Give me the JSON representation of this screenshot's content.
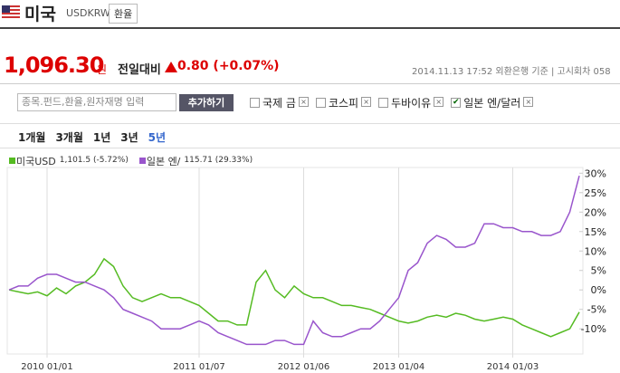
{
  "header": {
    "country": "미국",
    "code": "USDKRW",
    "button": "환율"
  },
  "quote": {
    "price": "1,096.30",
    "unit": "원",
    "change_label": "전일대비",
    "change": "0.80 (+0.07%)",
    "info": "2014.11.13 17:52  외환은행 기준  |  고시회차 058"
  },
  "search": {
    "placeholder": "종목.펀드,환율,원자재명 입력",
    "button": "추가하기",
    "compare": [
      {
        "label": "국제 금",
        "checked": false
      },
      {
        "label": "코스피",
        "checked": false
      },
      {
        "label": "두바이유",
        "checked": false
      },
      {
        "label": "일본 엔/달러",
        "checked": true
      }
    ]
  },
  "periods": {
    "items": [
      "1개월",
      "3개월",
      "1년",
      "3년",
      "5년"
    ],
    "active": 4
  },
  "chart_data": {
    "type": "line",
    "categories": [
      null,
      null,
      null,
      null,
      "2010 01/01",
      null,
      null,
      null,
      null,
      null,
      null,
      null,
      null,
      null,
      null,
      null,
      null,
      null,
      null,
      null,
      "2011 01/07",
      null,
      null,
      null,
      null,
      null,
      null,
      null,
      null,
      null,
      null,
      "2012 01/06",
      null,
      null,
      null,
      null,
      null,
      null,
      null,
      null,
      null,
      "2013 01/04",
      null,
      null,
      null,
      null,
      null,
      null,
      null,
      null,
      null,
      null,
      null,
      "2014 01/03",
      null,
      null,
      null,
      null,
      null,
      null,
      null
    ],
    "series": [
      {
        "name": "미국USD",
        "note": "1,101.5 (-5.72%)",
        "color": "#55bb22",
        "values": [
          0,
          -0.5,
          -1,
          -0.5,
          -1.5,
          0.5,
          -1,
          1,
          2,
          4,
          8,
          6,
          1,
          -2,
          -3,
          -2,
          -1,
          -2,
          -2,
          -3,
          -4,
          -6,
          -8,
          -8,
          -9,
          -9,
          2,
          5,
          0,
          -2,
          1,
          -1,
          -2,
          -2,
          -3,
          -4,
          -4,
          -4.5,
          -5,
          -6,
          -7,
          -8,
          -8.5,
          -8,
          -7,
          -6.5,
          -7,
          -6,
          -6.5,
          -7.5,
          -8,
          -7.5,
          -7,
          -7.5,
          -9,
          -10,
          -11,
          -12,
          -11,
          -10,
          -5.72
        ]
      },
      {
        "name": "일본 엔/",
        "note": "115.71 (29.33%)",
        "color": "#9955cc",
        "values": [
          0,
          1,
          1,
          3,
          4,
          4,
          3,
          2,
          2,
          1,
          0,
          -2,
          -5,
          -6,
          -7,
          -8,
          -10,
          -10,
          -10,
          -9,
          -8,
          -9,
          -11,
          -12,
          -13,
          -14,
          -14,
          -14,
          -13,
          -13,
          -14,
          -14,
          -8,
          -11,
          -12,
          -12,
          -11,
          -10,
          -10,
          -8,
          -5,
          -2,
          5,
          7,
          12,
          14,
          13,
          11,
          11,
          12,
          17,
          17,
          16,
          16,
          15,
          15,
          14,
          14,
          15,
          20,
          29.33
        ]
      }
    ],
    "ylim": [
      -16,
      31
    ],
    "yticks": [
      {
        "value": 30,
        "label": "30%"
      },
      {
        "value": 25,
        "label": "25%"
      },
      {
        "value": 20,
        "label": "20%"
      },
      {
        "value": 15,
        "label": "15%"
      },
      {
        "value": 10,
        "label": "10%"
      },
      {
        "value": 5,
        "label": "5%"
      },
      {
        "value": 0,
        "label": "0%"
      },
      {
        "value": -5,
        "label": "-5%"
      },
      {
        "value": -10,
        "label": "-10%"
      }
    ]
  }
}
